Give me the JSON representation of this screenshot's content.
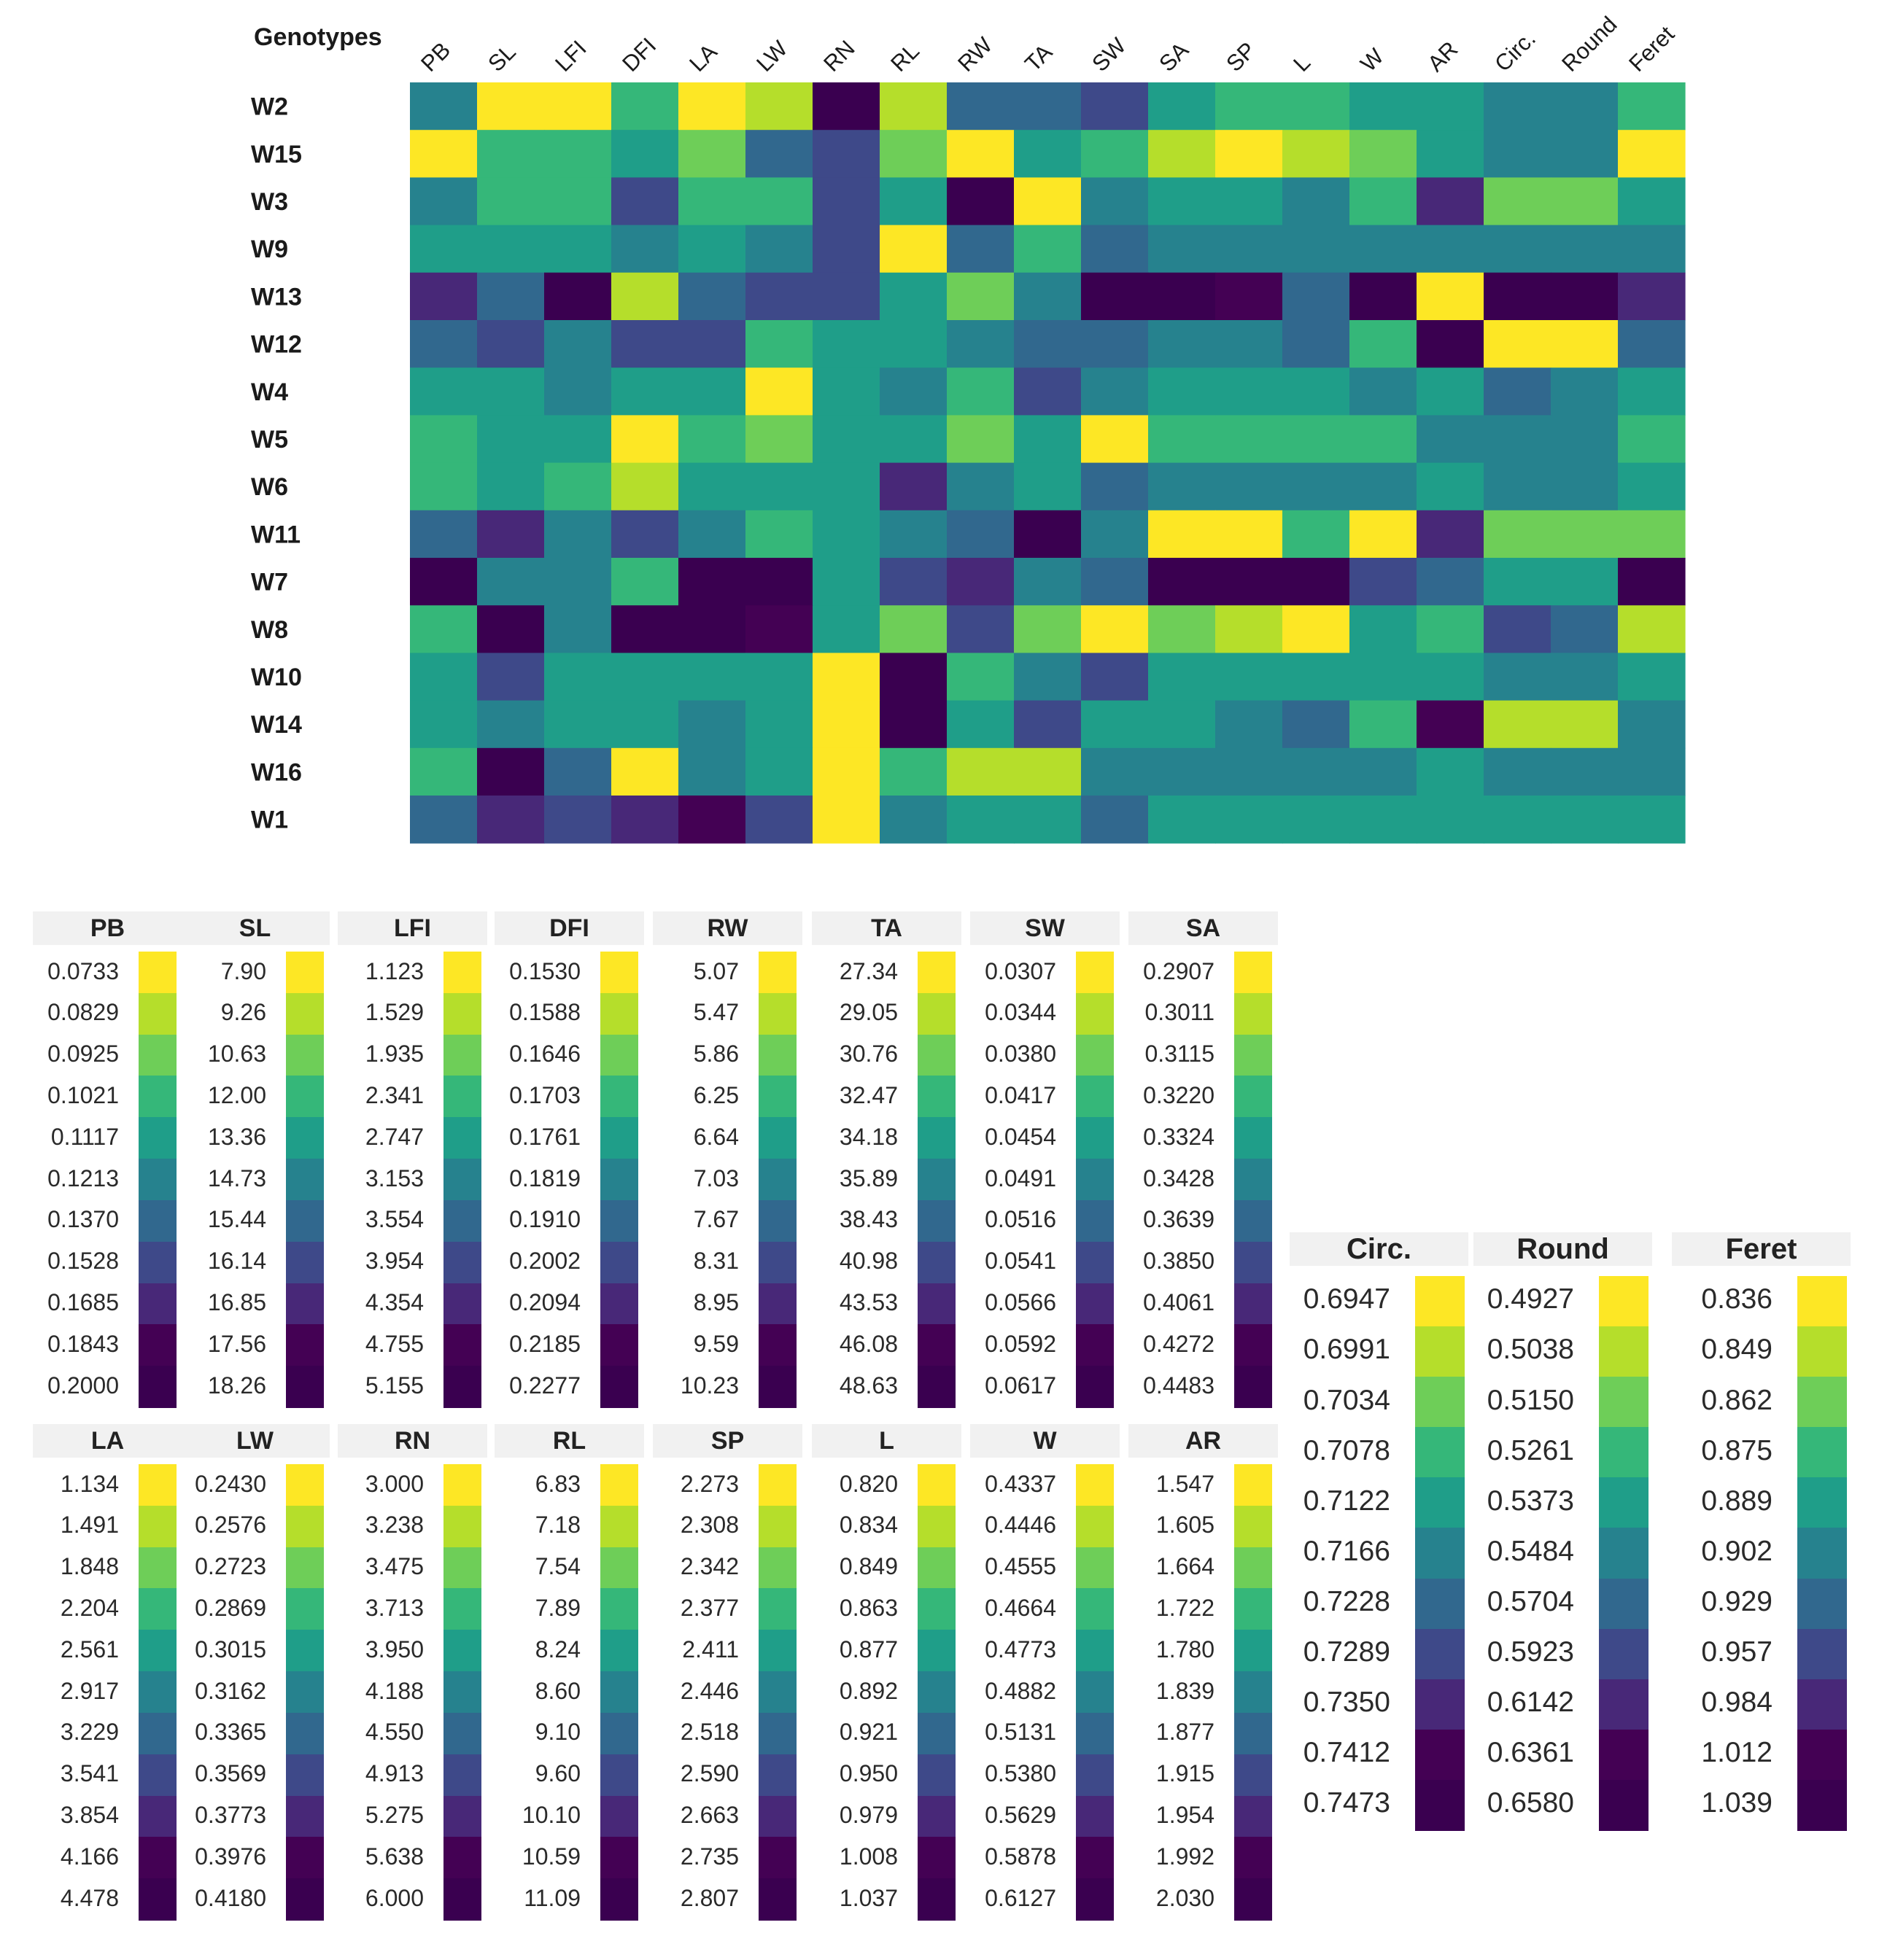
{
  "chart_data": [
    {
      "type": "heatmap",
      "title": "",
      "corner_label": "Genotypes",
      "rows": [
        "W2",
        "W15",
        "W3",
        "W9",
        "W13",
        "W12",
        "W4",
        "W5",
        "W6",
        "W11",
        "W7",
        "W8",
        "W10",
        "W14",
        "W16",
        "W1"
      ],
      "columns": [
        "PB",
        "SL",
        "LFI",
        "DFI",
        "LA",
        "LW",
        "RN",
        "RL",
        "RW",
        "TA",
        "SW",
        "SA",
        "SP",
        "L",
        "W",
        "AR",
        "Circ.",
        "Round",
        "Feret"
      ],
      "column_labels": [
        "PB",
        "SL",
        "LFI",
        "DFI",
        "LA",
        "LW",
        "RN",
        "RL",
        "RW",
        "TA",
        "SW",
        "SA",
        "SP",
        "L",
        "W",
        "AR",
        "Circ.",
        "Round",
        "Feret"
      ],
      "levels_note": "cell value = color level index (0 = yellow/lowest legend value ... 10 = dark purple/highest legend value)",
      "matrix": [
        [
          5,
          0,
          0,
          3,
          0,
          1,
          10,
          1,
          6,
          6,
          7,
          4,
          3,
          3,
          4,
          4,
          5,
          5,
          3
        ],
        [
          0,
          3,
          3,
          4,
          2,
          6,
          7,
          2,
          0,
          4,
          3,
          1,
          0,
          1,
          2,
          4,
          5,
          5,
          0
        ],
        [
          5,
          3,
          3,
          7,
          3,
          3,
          7,
          4,
          10,
          0,
          5,
          4,
          4,
          5,
          3,
          8,
          2,
          2,
          4
        ],
        [
          4,
          4,
          4,
          5,
          4,
          5,
          7,
          0,
          6,
          3,
          6,
          5,
          5,
          5,
          5,
          5,
          5,
          5,
          5
        ],
        [
          8,
          6,
          10,
          1,
          6,
          7,
          7,
          4,
          2,
          5,
          10,
          10,
          9,
          6,
          10,
          0,
          10,
          10,
          8
        ],
        [
          6,
          7,
          5,
          7,
          7,
          3,
          4,
          4,
          5,
          6,
          6,
          5,
          5,
          6,
          3,
          10,
          0,
          0,
          6
        ],
        [
          4,
          4,
          5,
          4,
          4,
          0,
          4,
          5,
          3,
          7,
          5,
          4,
          4,
          4,
          5,
          4,
          6,
          5,
          4
        ],
        [
          3,
          4,
          4,
          0,
          3,
          2,
          4,
          4,
          2,
          4,
          0,
          3,
          3,
          3,
          3,
          5,
          5,
          5,
          3
        ],
        [
          3,
          4,
          3,
          1,
          4,
          4,
          4,
          8,
          5,
          4,
          6,
          5,
          5,
          5,
          5,
          4,
          5,
          5,
          4
        ],
        [
          6,
          8,
          5,
          7,
          5,
          3,
          4,
          5,
          6,
          10,
          5,
          0,
          0,
          3,
          0,
          8,
          2,
          2,
          2
        ],
        [
          10,
          5,
          5,
          3,
          10,
          10,
          4,
          7,
          8,
          5,
          6,
          10,
          10,
          10,
          7,
          6,
          4,
          4,
          10
        ],
        [
          3,
          10,
          5,
          10,
          10,
          9,
          4,
          2,
          7,
          2,
          0,
          2,
          1,
          0,
          4,
          3,
          7,
          6,
          1
        ],
        [
          4,
          7,
          4,
          4,
          4,
          4,
          0,
          10,
          3,
          5,
          7,
          4,
          4,
          4,
          4,
          4,
          5,
          5,
          4
        ],
        [
          4,
          5,
          4,
          4,
          5,
          4,
          0,
          10,
          4,
          7,
          4,
          4,
          5,
          6,
          3,
          9,
          1,
          1,
          5
        ],
        [
          3,
          10,
          6,
          0,
          5,
          4,
          0,
          3,
          1,
          1,
          5,
          5,
          5,
          5,
          5,
          4,
          5,
          5,
          5
        ],
        [
          6,
          8,
          7,
          8,
          9,
          7,
          0,
          5,
          4,
          4,
          6,
          4,
          4,
          4,
          4,
          4,
          4,
          4,
          4
        ]
      ],
      "legend_position": "below",
      "legends": [
        {
          "title": "PB",
          "values": [
            "0.0733",
            "0.0829",
            "0.0925",
            "0.1021",
            "0.1117",
            "0.1213",
            "0.1370",
            "0.1528",
            "0.1685",
            "0.1843",
            "0.2000"
          ]
        },
        {
          "title": "SL",
          "values": [
            "7.90",
            "9.26",
            "10.63",
            "12.00",
            "13.36",
            "14.73",
            "15.44",
            "16.14",
            "16.85",
            "17.56",
            "18.26"
          ]
        },
        {
          "title": "LFI",
          "values": [
            "1.123",
            "1.529",
            "1.935",
            "2.341",
            "2.747",
            "3.153",
            "3.554",
            "3.954",
            "4.354",
            "4.755",
            "5.155"
          ]
        },
        {
          "title": "DFI",
          "values": [
            "0.1530",
            "0.1588",
            "0.1646",
            "0.1703",
            "0.1761",
            "0.1819",
            "0.1910",
            "0.2002",
            "0.2094",
            "0.2185",
            "0.2277"
          ]
        },
        {
          "title": "RW",
          "values": [
            "5.07",
            "5.47",
            "5.86",
            "6.25",
            "6.64",
            "7.03",
            "7.67",
            "8.31",
            "8.95",
            "9.59",
            "10.23"
          ]
        },
        {
          "title": "TA",
          "values": [
            "27.34",
            "29.05",
            "30.76",
            "32.47",
            "34.18",
            "35.89",
            "38.43",
            "40.98",
            "43.53",
            "46.08",
            "48.63"
          ]
        },
        {
          "title": "SW",
          "values": [
            "0.0307",
            "0.0344",
            "0.0380",
            "0.0417",
            "0.0454",
            "0.0491",
            "0.0516",
            "0.0541",
            "0.0566",
            "0.0592",
            "0.0617"
          ]
        },
        {
          "title": "SA",
          "values": [
            "0.2907",
            "0.3011",
            "0.3115",
            "0.3220",
            "0.3324",
            "0.3428",
            "0.3639",
            "0.3850",
            "0.4061",
            "0.4272",
            "0.4483"
          ]
        },
        {
          "title": "LA",
          "values": [
            "1.134",
            "1.491",
            "1.848",
            "2.204",
            "2.561",
            "2.917",
            "3.229",
            "3.541",
            "3.854",
            "4.166",
            "4.478"
          ]
        },
        {
          "title": "LW",
          "values": [
            "0.2430",
            "0.2576",
            "0.2723",
            "0.2869",
            "0.3015",
            "0.3162",
            "0.3365",
            "0.3569",
            "0.3773",
            "0.3976",
            "0.4180"
          ]
        },
        {
          "title": "RN",
          "values": [
            "3.000",
            "3.238",
            "3.475",
            "3.713",
            "3.950",
            "4.188",
            "4.550",
            "4.913",
            "5.275",
            "5.638",
            "6.000"
          ]
        },
        {
          "title": "RL",
          "values": [
            "6.83",
            "7.18",
            "7.54",
            "7.89",
            "8.24",
            "8.60",
            "9.10",
            "9.60",
            "10.10",
            "10.59",
            "11.09"
          ]
        },
        {
          "title": "SP",
          "values": [
            "2.273",
            "2.308",
            "2.342",
            "2.377",
            "2.411",
            "2.446",
            "2.518",
            "2.590",
            "2.663",
            "2.735",
            "2.807"
          ]
        },
        {
          "title": "L",
          "values": [
            "0.820",
            "0.834",
            "0.849",
            "0.863",
            "0.877",
            "0.892",
            "0.921",
            "0.950",
            "0.979",
            "1.008",
            "1.037"
          ]
        },
        {
          "title": "W",
          "values": [
            "0.4337",
            "0.4446",
            "0.4555",
            "0.4664",
            "0.4773",
            "0.4882",
            "0.5131",
            "0.5380",
            "0.5629",
            "0.5878",
            "0.6127"
          ]
        },
        {
          "title": "AR",
          "values": [
            "1.547",
            "1.605",
            "1.664",
            "1.722",
            "1.780",
            "1.839",
            "1.877",
            "1.915",
            "1.954",
            "1.992",
            "2.030"
          ]
        },
        {
          "title": "Circ.",
          "values": [
            "0.6947",
            "0.6991",
            "0.7034",
            "0.7078",
            "0.7122",
            "0.7166",
            "0.7228",
            "0.7289",
            "0.7350",
            "0.7412",
            "0.7473"
          ]
        },
        {
          "title": "Round",
          "values": [
            "0.4927",
            "0.5038",
            "0.5150",
            "0.5261",
            "0.5373",
            "0.5484",
            "0.5704",
            "0.5923",
            "0.6142",
            "0.6361",
            "0.6580"
          ]
        },
        {
          "title": "Feret",
          "values": [
            "0.836",
            "0.849",
            "0.862",
            "0.875",
            "0.889",
            "0.902",
            "0.929",
            "0.957",
            "0.984",
            "1.012",
            "1.039"
          ]
        }
      ]
    }
  ],
  "colors": {
    "palette": [
      "#fde725",
      "#b5de2b",
      "#6ece58",
      "#35b779",
      "#1f9e89",
      "#26828e",
      "#31688e",
      "#3e4989",
      "#482878",
      "#440154",
      "#3a0050"
    ]
  }
}
